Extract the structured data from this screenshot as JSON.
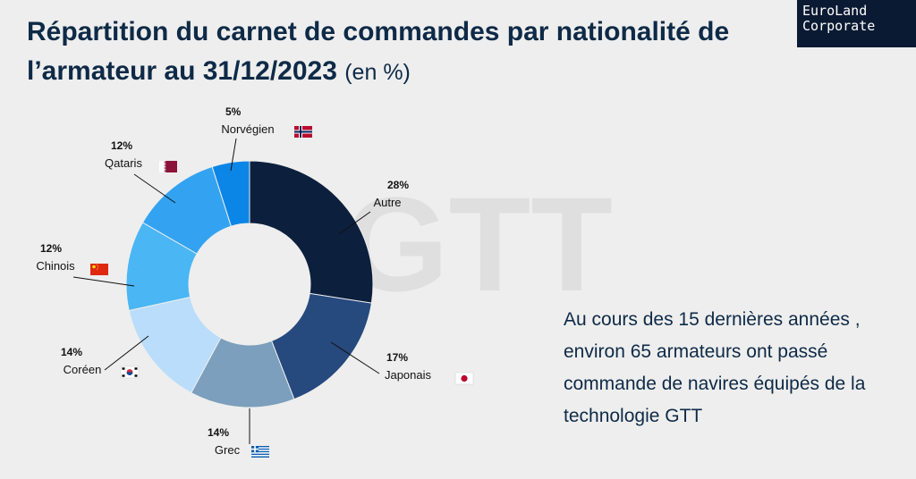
{
  "header": {
    "title": "Répartition du carnet de commandes par nationalité de l’armateur au 31/12/2023",
    "title_unit": "(en %)",
    "brand_line1": "EuroLand",
    "brand_line2": "Corporate"
  },
  "note": "Au cours des 15 dernières années , environ 65 armateurs ont passé commande de navires équipés de la technologie GTT",
  "watermark": "GTT",
  "colors": {
    "title": "#0e2a47",
    "brand_bg": "#0b1a33",
    "background": "#eeeeee"
  },
  "chart_data": {
    "type": "pie",
    "donut": true,
    "title": "Répartition du carnet de commandes par nationalité de l’armateur au 31/12/2023",
    "unit": "%",
    "slices": [
      {
        "label": "Autre",
        "value": 28,
        "pct_label": "28%",
        "color": "#0c1f3d",
        "flag": "none"
      },
      {
        "label": "Japonais",
        "value": 17,
        "pct_label": "17%",
        "color": "#26497e",
        "flag": "japan-flag"
      },
      {
        "label": "Grec",
        "value": 14,
        "pct_label": "14%",
        "color": "#7b9fbd",
        "flag": "greece-flag"
      },
      {
        "label": "Coréen",
        "value": 14,
        "pct_label": "14%",
        "color": "#b9ddfb",
        "flag": "korea-flag"
      },
      {
        "label": "Chinois",
        "value": 12,
        "pct_label": "12%",
        "color": "#4ab6f4",
        "flag": "china-flag"
      },
      {
        "label": "Qataris",
        "value": 12,
        "pct_label": "12%",
        "color": "#33a3f1",
        "flag": "qatar-flag"
      },
      {
        "label": "Norvégien",
        "value": 5,
        "pct_label": "5%",
        "color": "#0b86e7",
        "flag": "norway-flag"
      }
    ]
  }
}
